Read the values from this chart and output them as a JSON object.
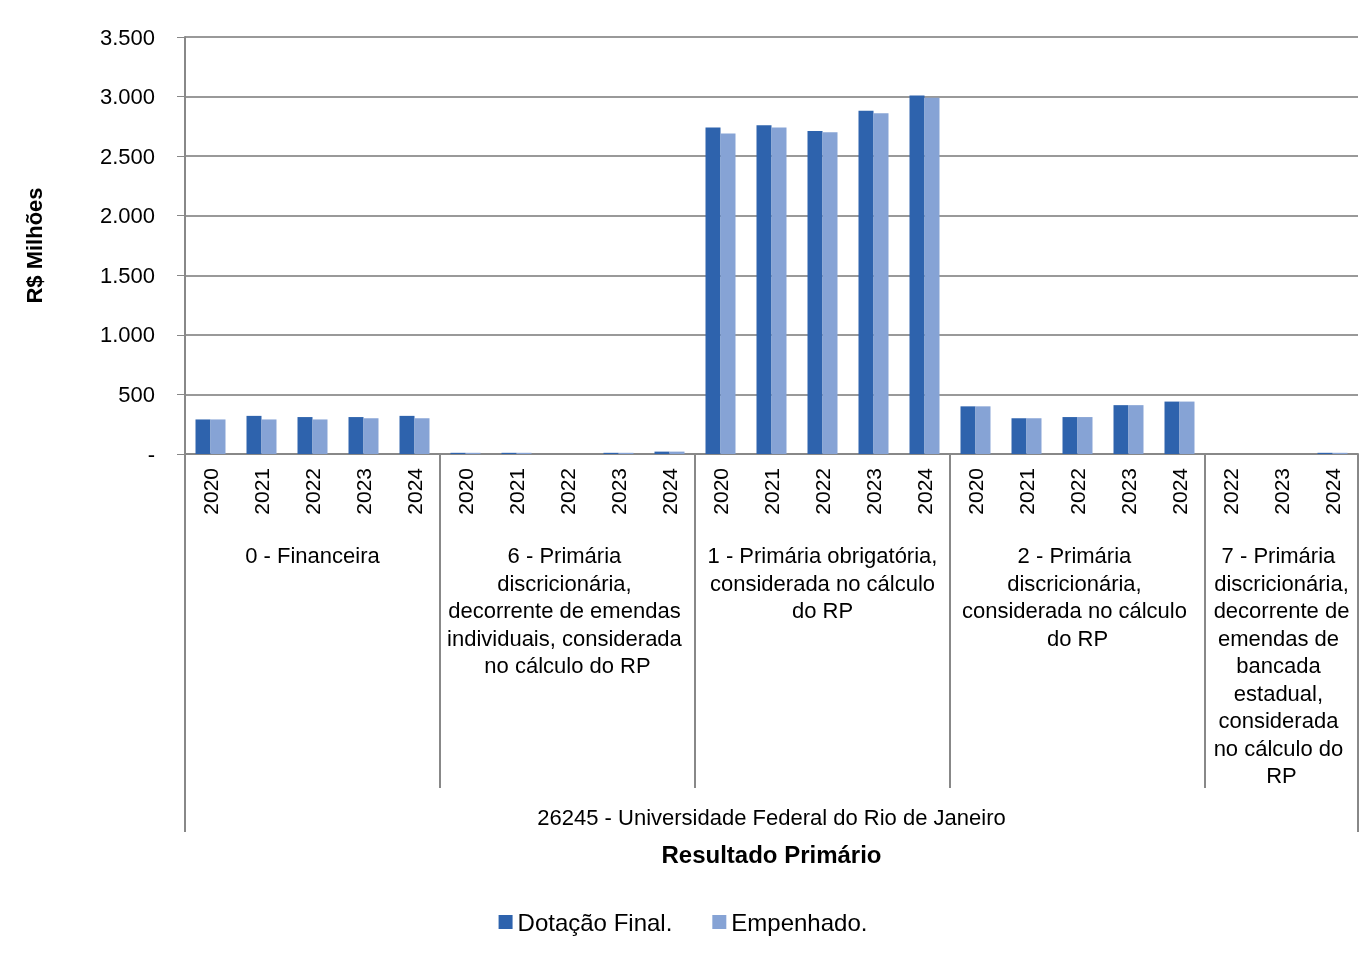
{
  "chart_data": {
    "type": "bar",
    "categories": [
      "2020",
      "2021",
      "2022",
      "2023",
      "2024",
      "2020",
      "2021",
      "2022",
      "2023",
      "2024",
      "2020",
      "2021",
      "2022",
      "2023",
      "2024",
      "2020",
      "2021",
      "2022",
      "2023",
      "2024",
      "2022",
      "2023",
      "2024"
    ],
    "series": [
      {
        "name": "Dotação Final.",
        "color": "#2e63ad",
        "values": [
          290,
          320,
          310,
          310,
          320,
          10,
          10,
          0,
          10,
          20,
          2740,
          2760,
          2710,
          2880,
          3010,
          400,
          300,
          310,
          410,
          440,
          0,
          0,
          10
        ]
      },
      {
        "name": "Empenhado.",
        "color": "#86a3d5",
        "values": [
          290,
          290,
          290,
          300,
          300,
          10,
          10,
          0,
          10,
          20,
          2690,
          2740,
          2700,
          2860,
          2990,
          400,
          300,
          310,
          410,
          440,
          0,
          0,
          10
        ]
      }
    ],
    "annotations": [
      "0 - Financeira",
      "6 - Primária discricionária, decorrente de emendas individuais, considerada no cálculo do RP",
      "1 - Primária obrigatória, considerada no cálculo do RP",
      "2 - Primária discricionária, considerada no cálculo do RP",
      "7 - Primária discricionária, decorrente de emendas de bancada estadual, considerada no cálculo do RP",
      "26245 - Universidade Federal do Rio de Janeiro",
      "Resultado Primário"
    ],
    "ylabel": "R$ Milhões",
    "ylim": [
      0,
      3500
    ],
    "yticks": [
      {
        "value": 0,
        "label": "-"
      },
      {
        "value": 500,
        "label": "500"
      },
      {
        "value": 1000,
        "label": "1.000"
      },
      {
        "value": 1500,
        "label": "1.500"
      },
      {
        "value": 2000,
        "label": "2.000"
      },
      {
        "value": 2500,
        "label": "2.500"
      },
      {
        "value": 3000,
        "label": "3.000"
      },
      {
        "value": 3500,
        "label": "3.500"
      }
    ],
    "grid": "y",
    "legend": "bottom"
  }
}
